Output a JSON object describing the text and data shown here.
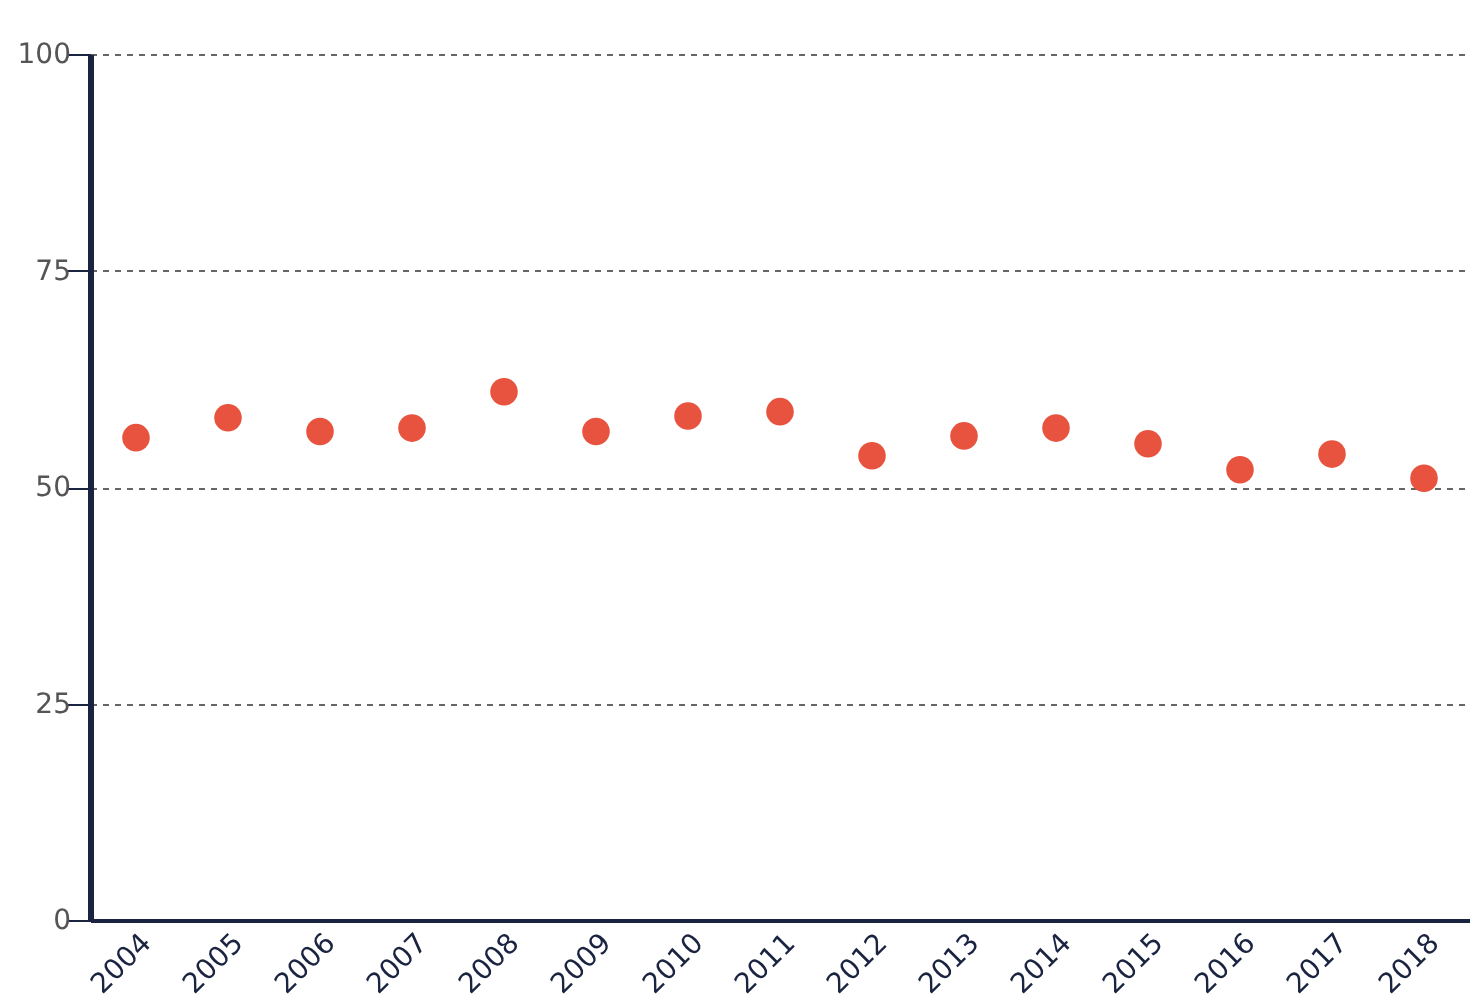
{
  "chart_data": {
    "type": "scatter",
    "categories": [
      "2004",
      "2005",
      "2006",
      "2007",
      "2008",
      "2009",
      "2010",
      "2011",
      "2012",
      "2013",
      "2014",
      "2015",
      "2016",
      "2017",
      "2018"
    ],
    "series": [
      {
        "color": "#e8533f",
        "values": [
          55.7,
          58.0,
          56.4,
          56.8,
          61.0,
          56.4,
          58.2,
          58.7,
          53.6,
          55.9,
          56.8,
          55.0,
          52.0,
          53.8,
          51.0
        ]
      }
    ],
    "ylim": [
      0,
      100
    ],
    "yticks": [
      0,
      25,
      50,
      75,
      100
    ],
    "grid": "y",
    "marker": "circle"
  }
}
